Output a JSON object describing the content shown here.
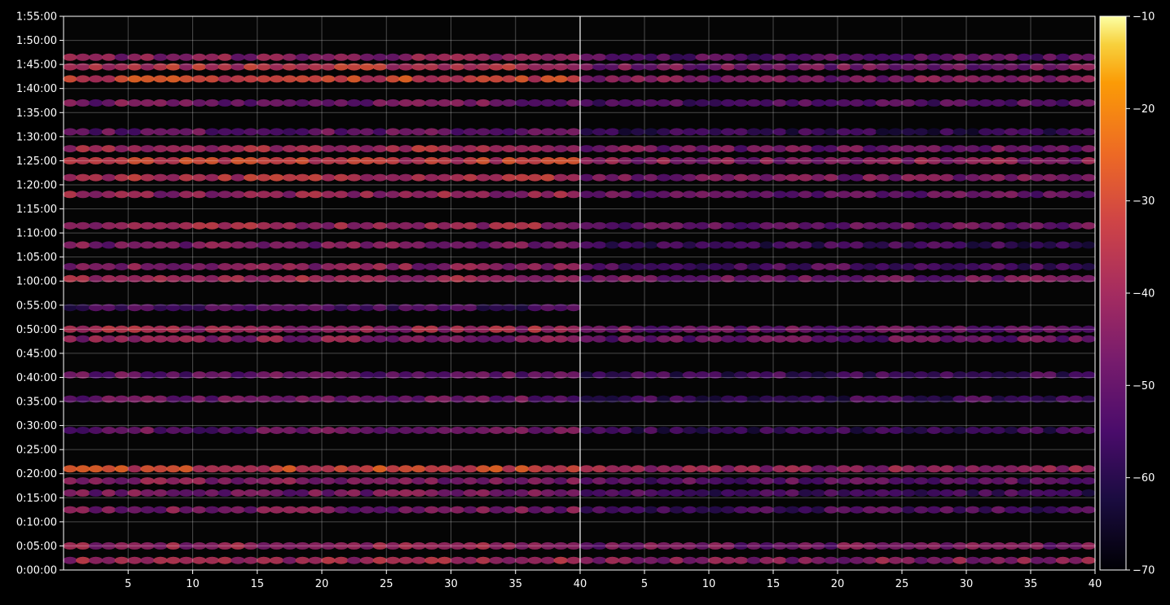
{
  "chart_data": [
    {
      "type": "heatmap",
      "title": "",
      "xlabel": "",
      "ylabel": "",
      "x_range": [
        1,
        40
      ],
      "x_ticks": [
        "5",
        "10",
        "15",
        "20",
        "25",
        "30",
        "35",
        "40"
      ],
      "y_range_seconds": [
        0,
        6900
      ],
      "y_tick_labels": [
        "0:00:00",
        "0:05:00",
        "0:10:00",
        "0:15:00",
        "0:20:00",
        "0:25:00",
        "0:30:00",
        "0:35:00",
        "0:40:00",
        "0:45:00",
        "0:50:00",
        "0:55:00",
        "1:00:00",
        "1:05:00",
        "1:10:00",
        "1:15:00",
        "1:20:00",
        "1:25:00",
        "1:30:00",
        "1:35:00",
        "1:40:00",
        "1:45:00",
        "1:50:00",
        "1:55:00"
      ],
      "grid": true,
      "bands": [
        {
          "time": "0:02:00",
          "value": -40
        },
        {
          "time": "0:05:00",
          "value": -42
        },
        {
          "time": "0:12:30",
          "value": -46
        },
        {
          "time": "0:16:00",
          "value": -47
        },
        {
          "time": "0:18:30",
          "value": -45
        },
        {
          "time": "0:21:00",
          "value": -32
        },
        {
          "time": "0:29:00",
          "value": -50
        },
        {
          "time": "0:35:30",
          "value": -49
        },
        {
          "time": "0:40:30",
          "value": -50
        },
        {
          "time": "0:48:00",
          "value": -44
        },
        {
          "time": "0:50:00",
          "value": -40
        },
        {
          "time": "0:54:30",
          "value": -55
        },
        {
          "time": "1:00:30",
          "value": -40
        },
        {
          "time": "1:03:00",
          "value": -44
        },
        {
          "time": "1:07:30",
          "value": -46
        },
        {
          "time": "1:11:30",
          "value": -40
        },
        {
          "time": "1:18:00",
          "value": -42
        },
        {
          "time": "1:21:30",
          "value": -36
        },
        {
          "time": "1:25:00",
          "value": -34
        },
        {
          "time": "1:27:30",
          "value": -38
        },
        {
          "time": "1:31:00",
          "value": -50
        },
        {
          "time": "1:37:00",
          "value": -47
        },
        {
          "time": "1:42:00",
          "value": -32
        },
        {
          "time": "1:44:30",
          "value": -36
        },
        {
          "time": "1:46:30",
          "value": -44
        }
      ]
    },
    {
      "type": "heatmap",
      "title": "",
      "xlabel": "",
      "ylabel": "",
      "x_range": [
        1,
        40
      ],
      "x_ticks": [
        "5",
        "10",
        "15",
        "20",
        "25",
        "30",
        "35",
        "40"
      ],
      "y_range_seconds": [
        0,
        6900
      ],
      "grid": true,
      "bands": [
        {
          "time": "0:02:00",
          "value": -44
        },
        {
          "time": "0:05:00",
          "value": -47
        },
        {
          "time": "0:12:30",
          "value": -54
        },
        {
          "time": "0:16:00",
          "value": -55
        },
        {
          "time": "0:18:30",
          "value": -52
        },
        {
          "time": "0:21:00",
          "value": -42
        },
        {
          "time": "0:29:00",
          "value": -58
        },
        {
          "time": "0:35:30",
          "value": -57
        },
        {
          "time": "0:40:30",
          "value": -56
        },
        {
          "time": "0:48:00",
          "value": -50
        },
        {
          "time": "0:50:00",
          "value": -48
        },
        {
          "time": "1:00:30",
          "value": -48
        },
        {
          "time": "1:03:00",
          "value": -54
        },
        {
          "time": "1:07:30",
          "value": -57
        },
        {
          "time": "1:11:30",
          "value": -50
        },
        {
          "time": "1:18:00",
          "value": -50
        },
        {
          "time": "1:21:30",
          "value": -47
        },
        {
          "time": "1:25:00",
          "value": -44
        },
        {
          "time": "1:27:30",
          "value": -48
        },
        {
          "time": "1:31:00",
          "value": -58
        },
        {
          "time": "1:37:00",
          "value": -52
        },
        {
          "time": "1:42:00",
          "value": -46
        },
        {
          "time": "1:44:30",
          "value": -47
        },
        {
          "time": "1:46:30",
          "value": -52
        }
      ]
    }
  ],
  "colorbar": {
    "ticks": [
      "−10",
      "−20",
      "−30",
      "−40",
      "−50",
      "−60",
      "−70"
    ],
    "range": [
      -70,
      -10
    ],
    "colormap": "inferno"
  }
}
